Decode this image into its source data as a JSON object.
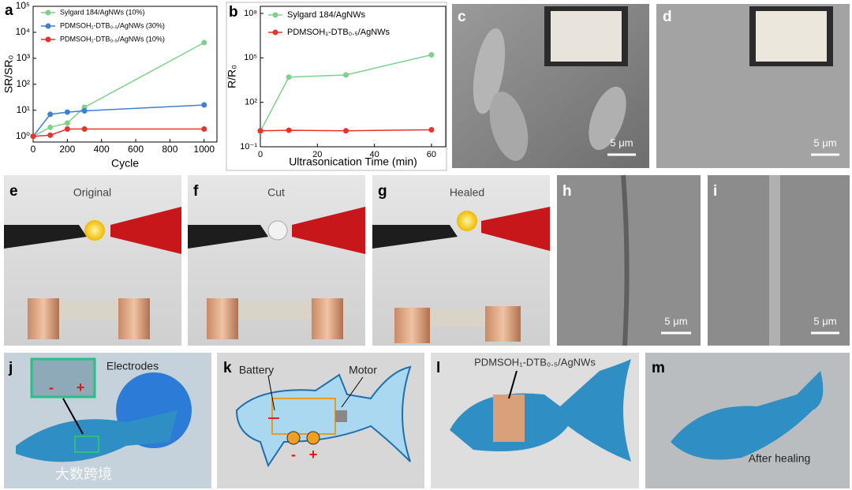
{
  "chart_data": [
    {
      "type": "line",
      "x_label": "Cycle",
      "y_label": "SR/SR₀",
      "x": [
        0,
        100,
        200,
        300,
        1000
      ],
      "xlim": [
        0,
        1075
      ],
      "xticks": [
        0,
        200,
        400,
        600,
        800,
        1000
      ],
      "log_y": true,
      "ylim": [
        0.6,
        100000
      ],
      "yticks": [
        {
          "value": 1,
          "label": "10⁰"
        },
        {
          "value": 10,
          "label": "10¹"
        },
        {
          "value": 100,
          "label": "10²"
        },
        {
          "value": 1000,
          "label": "10³"
        },
        {
          "value": 10000,
          "label": "10⁴"
        },
        {
          "value": 100000,
          "label": "10⁵"
        }
      ],
      "legend": "upper left",
      "series": [
        {
          "name": "Sylgard 184/AgNWs (10%)",
          "color": "#7ed08a",
          "values": [
            1,
            2.2,
            3.2,
            13,
            4000
          ]
        },
        {
          "name": "PDMSOH₁-DTB₀.₅/AgNWs (30%)",
          "color": "#3d7fd6",
          "values": [
            1,
            7,
            8.5,
            9.5,
            16
          ]
        },
        {
          "name": "PDMSOH₁-DTB₀.₅/AgNWs (10%)",
          "color": "#e8322c",
          "values": [
            1,
            1.1,
            1.9,
            1.9,
            1.9
          ]
        }
      ]
    },
    {
      "type": "line",
      "x_label": "Ultrasonication Time (min)",
      "y_label": "R/R₀",
      "x": [
        0,
        10,
        30,
        60
      ],
      "xlim": [
        0,
        65
      ],
      "xticks": [
        0,
        20,
        40,
        60
      ],
      "log_y": true,
      "ylim": [
        0.1,
        300000000
      ],
      "yticks": [
        {
          "value": 0.1,
          "label": "10⁻¹"
        },
        {
          "value": 100,
          "label": "10²"
        },
        {
          "value": 100000,
          "label": "10⁵"
        },
        {
          "value": 100000000,
          "label": "10⁸"
        }
      ],
      "legend": "upper left",
      "series": [
        {
          "name": "Sylgard 184/AgNWs",
          "color": "#7ed08a",
          "values": [
            1.1,
            5000,
            7000,
            160000
          ]
        },
        {
          "name": "PDMSOH₁-DTB₀.₅/AgNWs",
          "color": "#e8322c",
          "values": [
            1.2,
            1.3,
            1.2,
            1.4
          ]
        }
      ]
    }
  ],
  "panel_labels": [
    "a",
    "b",
    "c",
    "d",
    "e",
    "f",
    "g",
    "h",
    "i",
    "j",
    "k",
    "l",
    "m"
  ],
  "scale_bars": [
    "5 μm",
    "5 μm",
    "5 μm",
    "5 μm"
  ],
  "captions": {
    "e": "Original",
    "f": "Cut",
    "g": "Healed"
  },
  "j": {
    "label": "Electrodes",
    "minus": "-",
    "plus": "+"
  },
  "k": {
    "battery": "Battery",
    "motor": "Motor",
    "minus": "-",
    "plus": "+"
  },
  "l": {
    "label": "PDMSOH₁-DTB₀.₅/AgNWs"
  },
  "m": {
    "label": "After healing"
  },
  "watermark": "大数跨境"
}
